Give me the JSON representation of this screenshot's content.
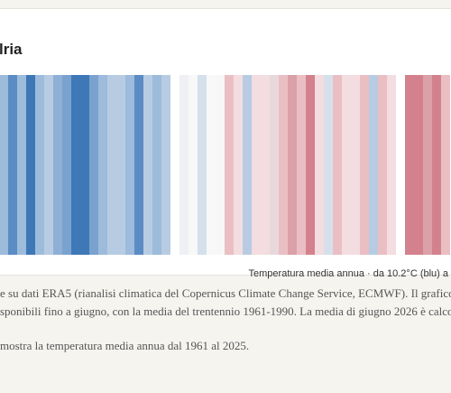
{
  "card": {
    "title": "lria",
    "stripes": [
      "#9dbbdb",
      "#5b8cc4",
      "#9dbbdb",
      "#3e78b6",
      "#9dbbdb",
      "#b7cce3",
      "#8fb0d6",
      "#7aa2cf",
      "#3e78b6",
      "#3e78b6",
      "#7aa2cf",
      "#9dbbdb",
      "#b7cce3",
      "#b7cce3",
      "#9dbbdb",
      "#5b8cc4",
      "#b7cce3",
      "#9dbbdb",
      "#b7cce3",
      "#ffffff",
      "#eef0f4",
      "#f8f8f8",
      "#d5e0ec",
      "#f8f8f8",
      "#f7f7f7",
      "#eabfc4",
      "#f3dde0",
      "#b7cce3",
      "#f3dde0",
      "#f3dde0",
      "#e7d8dc",
      "#eabfc4",
      "#dba0a8",
      "#eabfc4",
      "#d3828d",
      "#f3dde0",
      "#d5e0ec",
      "#eabfc4",
      "#f3dde0",
      "#f3dde0",
      "#eabfc4",
      "#b7cce3",
      "#eabfc4",
      "#f3dde0",
      "#ffffff",
      "#d3828d",
      "#d3828d",
      "#dba0a8",
      "#d3828d",
      "#eabfc4"
    ],
    "caption": "Temperatura media annua · da 10.2°C (blu) a"
  },
  "notes": [
    "e su dati ERA5 (rianalisi climatica del Copernicus Climate Change Service, ECMWF). Il grafico",
    "sponibili fino a giugno, con la media del trentennio 1961-1990. La media di giugno 2026 è calco",
    "mostra la temperatura media annua dal 1961 al 2025."
  ]
}
